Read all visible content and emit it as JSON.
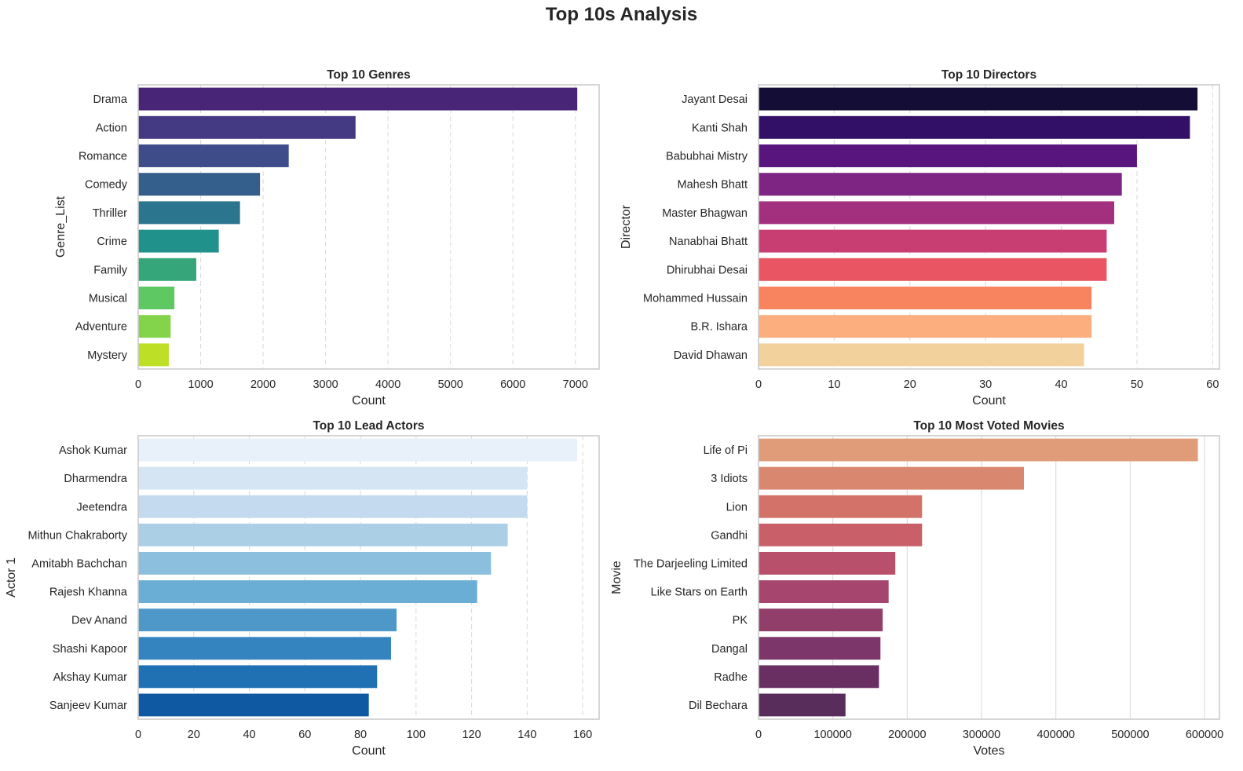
{
  "suptitle": "Top 10s Analysis",
  "chart_data": [
    {
      "type": "bar",
      "orientation": "horizontal",
      "title": "Top 10 Genres",
      "xlabel": "Count",
      "ylabel": "Genre_List",
      "categories": [
        "Drama",
        "Action",
        "Romance",
        "Comedy",
        "Thriller",
        "Crime",
        "Family",
        "Musical",
        "Adventure",
        "Mystery"
      ],
      "values": [
        7030,
        3480,
        2410,
        1950,
        1630,
        1290,
        930,
        580,
        520,
        490
      ],
      "xlim": [
        0,
        7380
      ],
      "xticks": [
        0,
        1000,
        2000,
        3000,
        4000,
        5000,
        6000,
        7000
      ],
      "xtick_labels": [
        "0",
        "1000",
        "2000",
        "3000",
        "4000",
        "5000",
        "6000",
        "7000"
      ],
      "grid": "x-dashed",
      "colors": [
        "#482576",
        "#443983",
        "#3f4c8a",
        "#345f8d",
        "#2b758e",
        "#21918c",
        "#34a679",
        "#5ec962",
        "#84d44b",
        "#bddf26"
      ]
    },
    {
      "type": "bar",
      "orientation": "horizontal",
      "title": "Top 10 Directors",
      "xlabel": "Count",
      "ylabel": "Director",
      "categories": [
        "Jayant Desai",
        "Kanti Shah",
        "Babubhai Mistry",
        "Mahesh Bhatt",
        "Master Bhagwan",
        "Nanabhai Bhatt",
        "Dhirubhai Desai",
        "Mohammed Hussain",
        "B.R. Ishara",
        "David Dhawan"
      ],
      "values": [
        58,
        57,
        50,
        48,
        47,
        46,
        46,
        44,
        44,
        43
      ],
      "xlim": [
        0,
        60.9
      ],
      "xticks": [
        0,
        10,
        20,
        30,
        40,
        50,
        60
      ],
      "xtick_labels": [
        "0",
        "10",
        "20",
        "30",
        "40",
        "50",
        "60"
      ],
      "grid": "x-dashed",
      "colors": [
        "#140e36",
        "#331067",
        "#59157e",
        "#7e2482",
        "#a3307e",
        "#c83e73",
        "#e95562",
        "#f8845f",
        "#fcae7e",
        "#f2d19c"
      ]
    },
    {
      "type": "bar",
      "orientation": "horizontal",
      "title": "Top 10 Lead Actors",
      "xlabel": "Count",
      "ylabel": "Actor 1",
      "categories": [
        "Ashok Kumar",
        "Dharmendra",
        "Jeetendra",
        "Mithun Chakraborty",
        "Amitabh Bachchan",
        "Rajesh Khanna",
        "Dev Anand",
        "Shashi Kapoor",
        "Akshay Kumar",
        "Sanjeev Kumar"
      ],
      "values": [
        158,
        140,
        140,
        133,
        127,
        122,
        93,
        91,
        86,
        83
      ],
      "xlim": [
        0,
        165.9
      ],
      "xticks": [
        0,
        20,
        40,
        60,
        80,
        100,
        120,
        140,
        160
      ],
      "xtick_labels": [
        "0",
        "20",
        "40",
        "60",
        "80",
        "100",
        "120",
        "140",
        "160"
      ],
      "grid": "x-dashed",
      "colors": [
        "#e8f0f9",
        "#d6e5f4",
        "#c4daee",
        "#abcfe5",
        "#8cbfdd",
        "#6aaed6",
        "#4d98c9",
        "#3484bf",
        "#2070b4",
        "#0e59a2"
      ]
    },
    {
      "type": "bar",
      "orientation": "horizontal",
      "title": "Top 10 Most Voted Movies",
      "xlabel": "Votes",
      "ylabel": "Movie",
      "categories": [
        "Life of Pi",
        "3 Idiots",
        "Lion",
        "Gandhi",
        "The Darjeeling Limited",
        "Like Stars on Earth",
        "PK",
        "Dangal",
        "Radhe",
        "Dil Bechara"
      ],
      "values": [
        591000,
        357000,
        220000,
        220000,
        184000,
        175000,
        167000,
        164000,
        162000,
        117000
      ],
      "xlim": [
        0,
        620000
      ],
      "xticks": [
        0,
        100000,
        200000,
        300000,
        400000,
        500000,
        600000
      ],
      "xtick_labels": [
        "0",
        "100000",
        "200000",
        "300000",
        "400000",
        "500000",
        "600000"
      ],
      "grid": "x-solid",
      "colors": [
        "#e09b79",
        "#da876f",
        "#d37268",
        "#c95f69",
        "#b9506b",
        "#a6456d",
        "#913e6b",
        "#7c3669",
        "#692f62",
        "#582d5b"
      ]
    }
  ]
}
